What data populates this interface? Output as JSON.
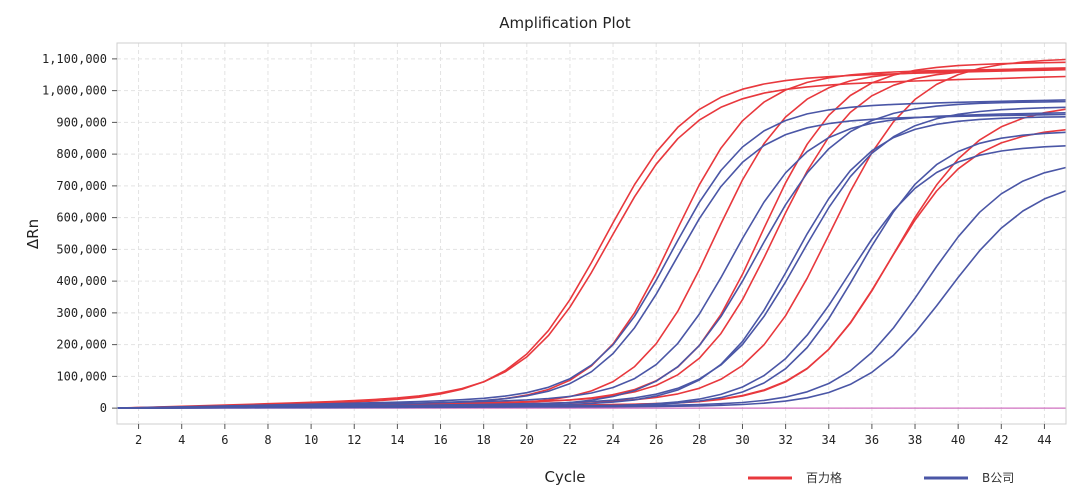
{
  "chart_data": {
    "type": "line",
    "title": "Amplification Plot",
    "xlabel": "Cycle",
    "ylabel": "ΔRn",
    "xlim": [
      1,
      45
    ],
    "ylim": [
      -50000,
      1150000
    ],
    "xticks": [
      2,
      4,
      6,
      8,
      10,
      12,
      14,
      16,
      18,
      20,
      22,
      24,
      26,
      28,
      30,
      32,
      34,
      36,
      38,
      40,
      42,
      44
    ],
    "yticks": [
      0,
      100000,
      200000,
      300000,
      400000,
      500000,
      600000,
      700000,
      800000,
      900000,
      1000000,
      1100000
    ],
    "ytick_labels": [
      "0",
      "100,000",
      "200,000",
      "300,000",
      "400,000",
      "500,000",
      "600,000",
      "700,000",
      "800,000",
      "900,000",
      "1,000,000",
      "1,100,000"
    ],
    "grid": true,
    "legend_position": "bottom-right",
    "groups": [
      {
        "name": "百力格",
        "color": "#e8383d"
      },
      {
        "name": "B公司",
        "color": "#4a56a6"
      }
    ],
    "threshold_color": "#d070c0",
    "series": [
      {
        "group": 0,
        "ct": 23.8,
        "plateau": 960000,
        "k": 0.5,
        "drift": 3200
      },
      {
        "group": 0,
        "ct": 23.6,
        "plateau": 1000000,
        "k": 0.5,
        "drift": 2500
      },
      {
        "group": 0,
        "ct": 26.8,
        "plateau": 1030000,
        "k": 0.55,
        "drift": 1500
      },
      {
        "group": 0,
        "ct": 28.7,
        "plateau": 1040000,
        "k": 0.56,
        "drift": 1000
      },
      {
        "group": 0,
        "ct": 30.9,
        "plateau": 1050000,
        "k": 0.56,
        "drift": 1500
      },
      {
        "group": 0,
        "ct": 31.5,
        "plateau": 1030000,
        "k": 0.55,
        "drift": 1600
      },
      {
        "group": 0,
        "ct": 34.1,
        "plateau": 1070000,
        "k": 0.52,
        "drift": 1200
      },
      {
        "group": 0,
        "ct": 36.7,
        "plateau": 870000,
        "k": 0.52,
        "drift": 700
      },
      {
        "group": 0,
        "ct": 37.0,
        "plateau": 940000,
        "k": 0.5,
        "drift": 700
      },
      {
        "group": 1,
        "ct": 26.9,
        "plateau": 880000,
        "k": 0.55,
        "drift": 1700
      },
      {
        "group": 1,
        "ct": 26.7,
        "plateau": 910000,
        "k": 0.55,
        "drift": 2300
      },
      {
        "group": 1,
        "ct": 29.5,
        "plateau": 880000,
        "k": 0.56,
        "drift": 1900
      },
      {
        "group": 1,
        "ct": 30.7,
        "plateau": 950000,
        "k": 0.52,
        "drift": 600
      },
      {
        "group": 1,
        "ct": 32.3,
        "plateau": 900000,
        "k": 0.55,
        "drift": 700
      },
      {
        "group": 1,
        "ct": 32.7,
        "plateau": 920000,
        "k": 0.52,
        "drift": 1100
      },
      {
        "group": 1,
        "ct": 34.9,
        "plateau": 820000,
        "k": 0.52,
        "drift": 400
      },
      {
        "group": 1,
        "ct": 35.4,
        "plateau": 860000,
        "k": 0.55,
        "drift": 500
      },
      {
        "group": 1,
        "ct": 38.5,
        "plateau": 770000,
        "k": 0.52,
        "drift": 500
      },
      {
        "group": 1,
        "ct": 39.5,
        "plateau": 720000,
        "k": 0.5,
        "drift": 300
      }
    ]
  }
}
